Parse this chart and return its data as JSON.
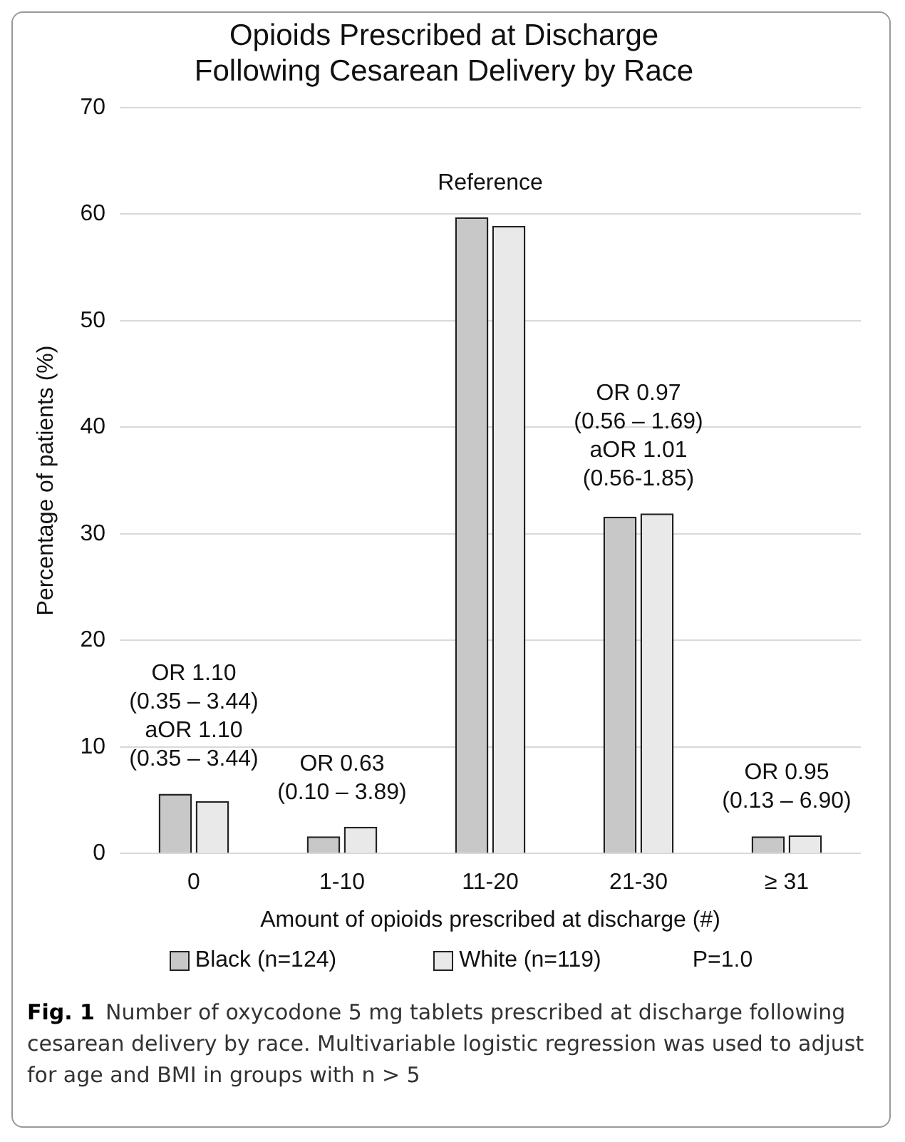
{
  "chart_data": {
    "type": "bar",
    "title": "Opioids Prescribed at Discharge Following Cesarean Delivery by Race",
    "xlabel": "Amount of opioids prescribed at discharge (#)",
    "ylabel": "Percentage of patients (%)",
    "categories": [
      "0",
      "1-10",
      "11-20",
      "21-30",
      "≥ 31"
    ],
    "series": [
      {
        "name": "Black (n=124)",
        "color": "#c8c8c8",
        "values": [
          5.6,
          1.6,
          59.7,
          31.6,
          1.6
        ]
      },
      {
        "name": "White (n=119)",
        "color": "#e9e9e9",
        "values": [
          4.9,
          2.5,
          58.9,
          31.9,
          1.7
        ]
      }
    ],
    "ylim": [
      0,
      70
    ],
    "yticks": [
      0,
      10,
      20,
      30,
      40,
      50,
      60,
      70
    ],
    "grid": "y",
    "legend": "bottom",
    "annotations": [
      "OR 1.10\n(0.35 – 3.44)\naOR 1.10\n(0.35 – 3.44)",
      "OR 0.63\n(0.10 – 3.89)",
      "Reference",
      "OR 0.97\n(0.56 – 1.69)\naOR 1.01\n(0.56-1.85)",
      "OR 0.95\n(0.13 – 6.90)",
      "P=1.0",
      "Fig. 1  Number of oxycodone 5 mg tablets prescribed at discharge following cesarean delivery by race. Multivariable logistic regression was used to adjust for age and BMI in groups with n > 5"
    ]
  }
}
